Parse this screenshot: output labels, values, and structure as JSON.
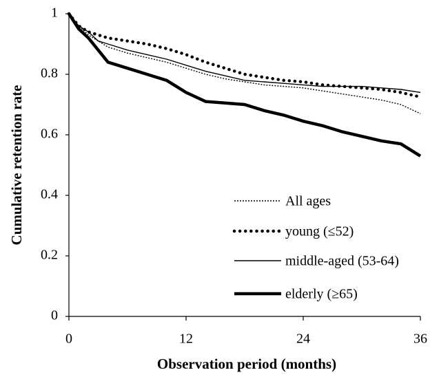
{
  "chart_data": {
    "type": "line",
    "x_label": "Observation period (months)",
    "y_label": "Cumulative retention rate",
    "xlim": [
      0,
      36
    ],
    "xticks": [
      0,
      12,
      24,
      36
    ],
    "ylim": [
      0,
      1
    ],
    "yticks": [
      0,
      0.2,
      0.4,
      0.6,
      0.8,
      1
    ],
    "grid": false,
    "legend": "lower right",
    "x": [
      0,
      1,
      2,
      3,
      4,
      6,
      8,
      10,
      12,
      14,
      16,
      18,
      20,
      22,
      24,
      26,
      28,
      30,
      32,
      34,
      36
    ],
    "series": [
      {
        "name": "All ages",
        "color": "#000000",
        "line_style": "dotted",
        "line_weight": "thin",
        "values": [
          1,
          0.96,
          0.93,
          0.91,
          0.89,
          0.87,
          0.855,
          0.84,
          0.82,
          0.8,
          0.785,
          0.775,
          0.765,
          0.76,
          0.755,
          0.745,
          0.735,
          0.725,
          0.715,
          0.7,
          0.67
        ]
      },
      {
        "name": "young (≤52)",
        "color": "#000000",
        "line_style": "dotted",
        "line_weight": "thick",
        "values": [
          1,
          0.96,
          0.94,
          0.93,
          0.92,
          0.91,
          0.9,
          0.885,
          0.865,
          0.84,
          0.82,
          0.8,
          0.79,
          0.78,
          0.775,
          0.765,
          0.76,
          0.755,
          0.75,
          0.74,
          0.725
        ]
      },
      {
        "name": "middle-aged (53-64)",
        "color": "#000000",
        "line_style": "solid",
        "line_weight": "thin",
        "values": [
          1,
          0.96,
          0.94,
          0.91,
          0.9,
          0.88,
          0.865,
          0.85,
          0.83,
          0.81,
          0.795,
          0.78,
          0.775,
          0.77,
          0.765,
          0.76,
          0.76,
          0.76,
          0.755,
          0.75,
          0.74
        ]
      },
      {
        "name": "elderly (≥65)",
        "color": "#000000",
        "line_style": "solid",
        "line_weight": "thick",
        "values": [
          1,
          0.95,
          0.92,
          0.88,
          0.84,
          0.82,
          0.8,
          0.78,
          0.74,
          0.71,
          0.705,
          0.7,
          0.68,
          0.665,
          0.645,
          0.63,
          0.61,
          0.595,
          0.58,
          0.57,
          0.53
        ]
      }
    ]
  }
}
